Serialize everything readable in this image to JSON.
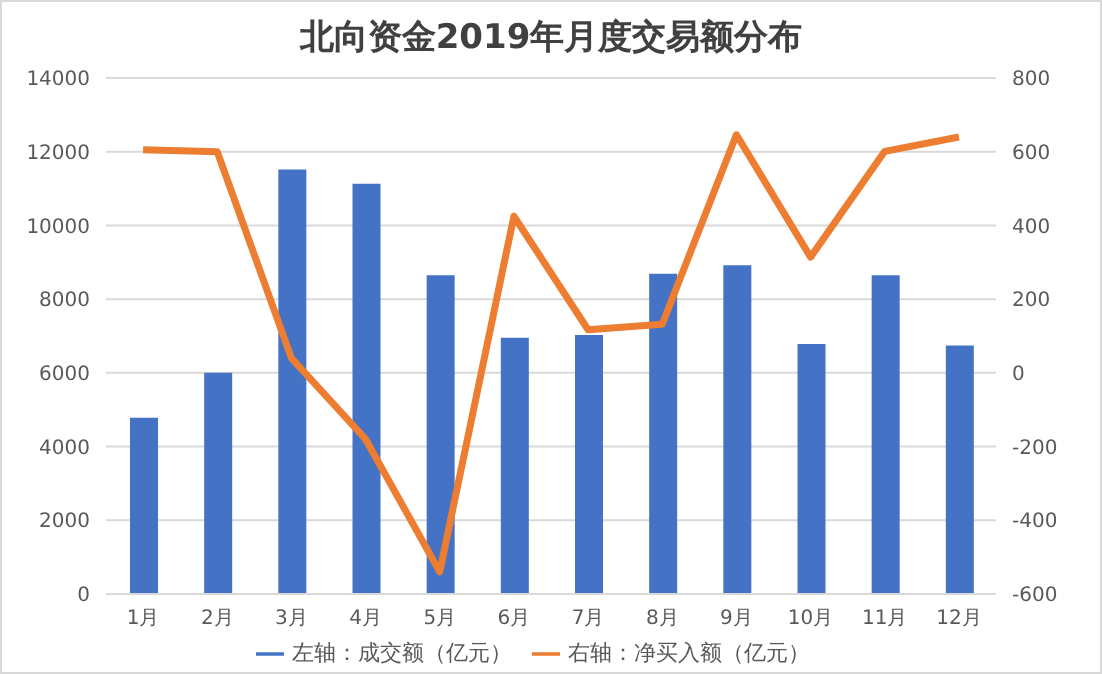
{
  "chart_data": {
    "type": "bar",
    "title": "北向资金2019年月度交易额分布",
    "categories": [
      "1月",
      "2月",
      "3月",
      "4月",
      "5月",
      "6月",
      "7月",
      "8月",
      "9月",
      "10月",
      "11月",
      "12月"
    ],
    "series": [
      {
        "name": "左轴：成交额（亿元）",
        "color": "#4472c4",
        "values": [
          4780,
          6000,
          11520,
          11130,
          8650,
          6950,
          7030,
          8690,
          8920,
          6780,
          8650,
          6740
        ]
      },
      {
        "name": "右轴：净买入额（亿元）",
        "type": "line",
        "axis": "y2",
        "color": "#ed7d31",
        "values": [
          605,
          600,
          40,
          -180,
          -540,
          425,
          117,
          132,
          646,
          314,
          601,
          640
        ]
      }
    ],
    "ylim": [
      0,
      14000
    ],
    "yticks": [
      0,
      2000,
      4000,
      6000,
      8000,
      10000,
      12000,
      14000
    ],
    "y2lim": [
      -600,
      800
    ],
    "y2ticks": [
      -600,
      -400,
      -200,
      0,
      200,
      400,
      600,
      800
    ],
    "grid": "y",
    "legend": "bottom",
    "marker": "none",
    "line_style": "solid"
  }
}
